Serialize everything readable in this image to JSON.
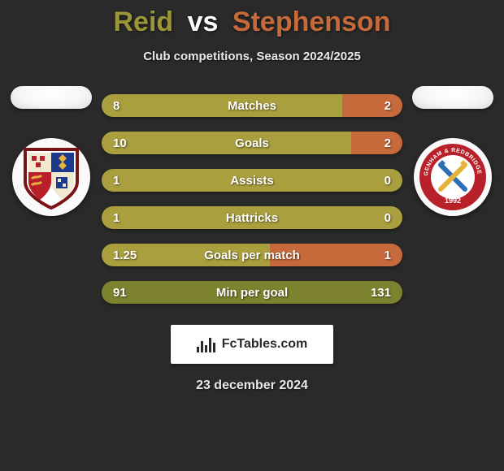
{
  "title": {
    "p1": "Reid",
    "vs": "vs",
    "p2": "Stephenson"
  },
  "title_colors": {
    "p1": "#9b9638",
    "vs": "#ffffff",
    "p2": "#c66a3b"
  },
  "subtitle": "Club competitions, Season 2024/2025",
  "colors": {
    "left": "#a99f3e",
    "right": "#c66a3b",
    "neutral": "#7c822e",
    "bg": "#2a2a2a"
  },
  "stats": [
    {
      "label": "Matches",
      "left_val": "8",
      "right_val": "2",
      "left_pct": 80,
      "colored": true
    },
    {
      "label": "Goals",
      "left_val": "10",
      "right_val": "2",
      "left_pct": 83,
      "colored": true
    },
    {
      "label": "Assists",
      "left_val": "1",
      "right_val": "0",
      "left_pct": 100,
      "colored": true
    },
    {
      "label": "Hattricks",
      "left_val": "1",
      "right_val": "0",
      "left_pct": 100,
      "colored": true
    },
    {
      "label": "Goals per match",
      "left_val": "1.25",
      "right_val": "1",
      "left_pct": 56,
      "colored": true
    },
    {
      "label": "Min per goal",
      "left_val": "91",
      "right_val": "131",
      "left_pct": 41,
      "colored": false
    }
  ],
  "branding": "FcTables.com",
  "date": "23 december 2024",
  "crest_left": {
    "shield_border": "#7a1216",
    "q1": "#f0e9cf",
    "q2": "#1d3a8a",
    "q3": "#b8202a",
    "q4": "#f0e9cf",
    "tl_accent": "#b8202a",
    "br_accent": "#1d3a8a"
  },
  "crest_right": {
    "outer": "#b8202a",
    "inner": "#ffffff",
    "cross1": "#2d6fb5",
    "cross2": "#e7b23c",
    "year": "1992",
    "top_text": "DAGENHAM & REDBRIDGE FC"
  }
}
